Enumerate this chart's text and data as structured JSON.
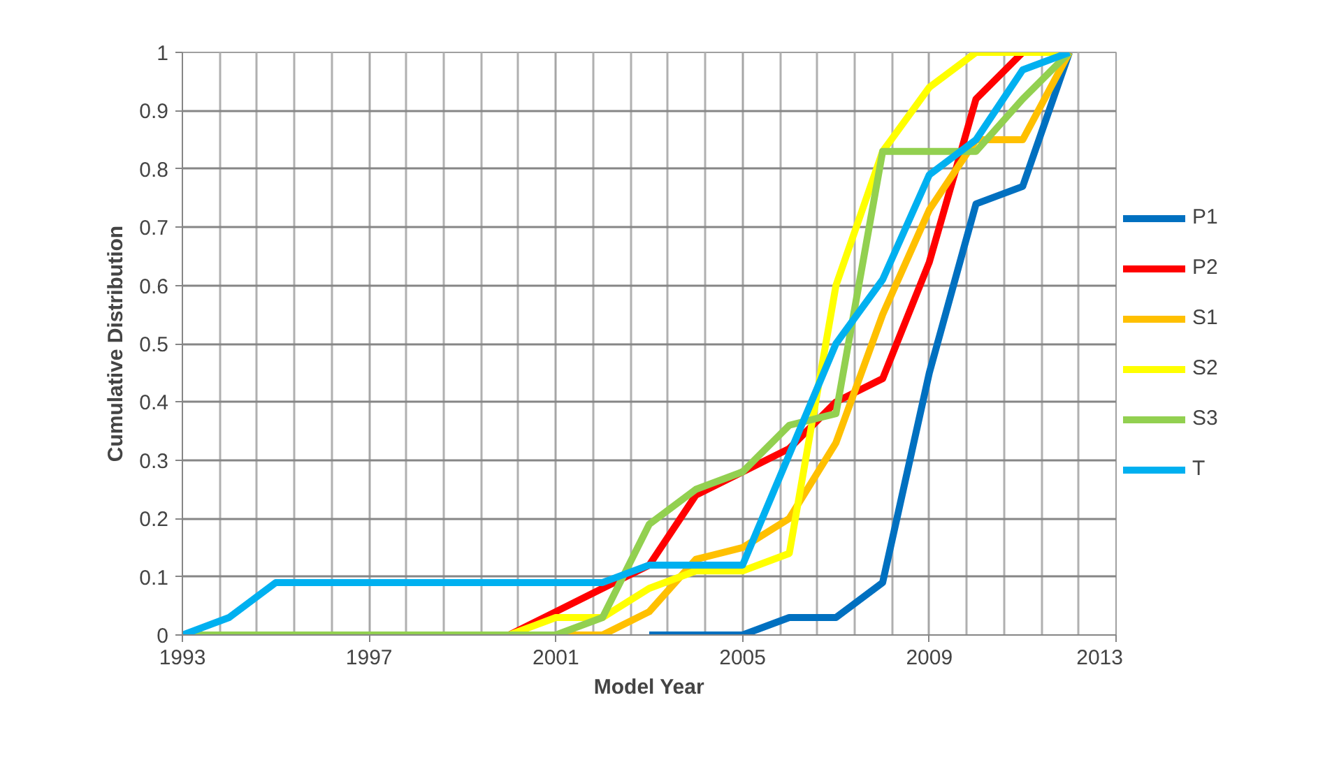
{
  "chart_data": {
    "type": "line",
    "xlabel": "Model Year",
    "ylabel": "Cumulative Distribution",
    "x": [
      1993,
      1994,
      1995,
      1996,
      1997,
      1998,
      1999,
      2000,
      2001,
      2002,
      2003,
      2004,
      2005,
      2006,
      2007,
      2008,
      2009,
      2010,
      2011,
      2012
    ],
    "series": [
      {
        "name": "P1",
        "color": "#0070c0",
        "values": [
          null,
          null,
          null,
          null,
          null,
          null,
          null,
          null,
          null,
          null,
          0,
          0,
          0,
          0.03,
          0.03,
          0.09,
          0.45,
          0.74,
          0.77,
          1.0
        ]
      },
      {
        "name": "P2",
        "color": "#ff0000",
        "values": [
          null,
          null,
          null,
          null,
          null,
          null,
          null,
          0,
          0.04,
          0.08,
          0.12,
          0.24,
          0.28,
          0.32,
          0.4,
          0.44,
          0.64,
          0.92,
          1.0,
          null
        ]
      },
      {
        "name": "S1",
        "color": "#ffc000",
        "values": [
          null,
          null,
          null,
          null,
          null,
          null,
          null,
          null,
          0,
          0,
          0.04,
          0.13,
          0.15,
          0.2,
          0.33,
          0.55,
          0.73,
          0.85,
          0.85,
          1.0
        ]
      },
      {
        "name": "S2",
        "color": "#ffff00",
        "values": [
          null,
          null,
          null,
          null,
          null,
          null,
          null,
          0,
          0.03,
          0.03,
          0.08,
          0.11,
          0.11,
          0.14,
          0.6,
          0.83,
          0.94,
          1.0,
          1.0,
          1.0
        ]
      },
      {
        "name": "S3",
        "color": "#92d050",
        "values": [
          0,
          0,
          0,
          0,
          0,
          0,
          0,
          0,
          0,
          0.03,
          0.19,
          0.25,
          0.28,
          0.36,
          0.38,
          0.83,
          0.83,
          0.83,
          0.92,
          1.0
        ]
      },
      {
        "name": "T",
        "color": "#00b0f0",
        "values": [
          0,
          0.03,
          0.09,
          0.09,
          0.09,
          0.09,
          0.09,
          0.09,
          0.09,
          0.09,
          0.12,
          0.12,
          0.12,
          0.31,
          0.5,
          0.61,
          0.79,
          0.85,
          0.97,
          1.0
        ]
      }
    ],
    "xlim": [
      1993,
      2013
    ],
    "xticks": [
      1993,
      1997,
      2001,
      2005,
      2009,
      2013
    ],
    "ylim": [
      0,
      1
    ],
    "yticks": [
      0,
      0.1,
      0.2,
      0.3,
      0.4,
      0.5,
      0.6,
      0.7,
      0.8,
      0.9,
      1
    ],
    "grid": true,
    "legend": "right",
    "marker": "none",
    "line_style": "solid"
  }
}
